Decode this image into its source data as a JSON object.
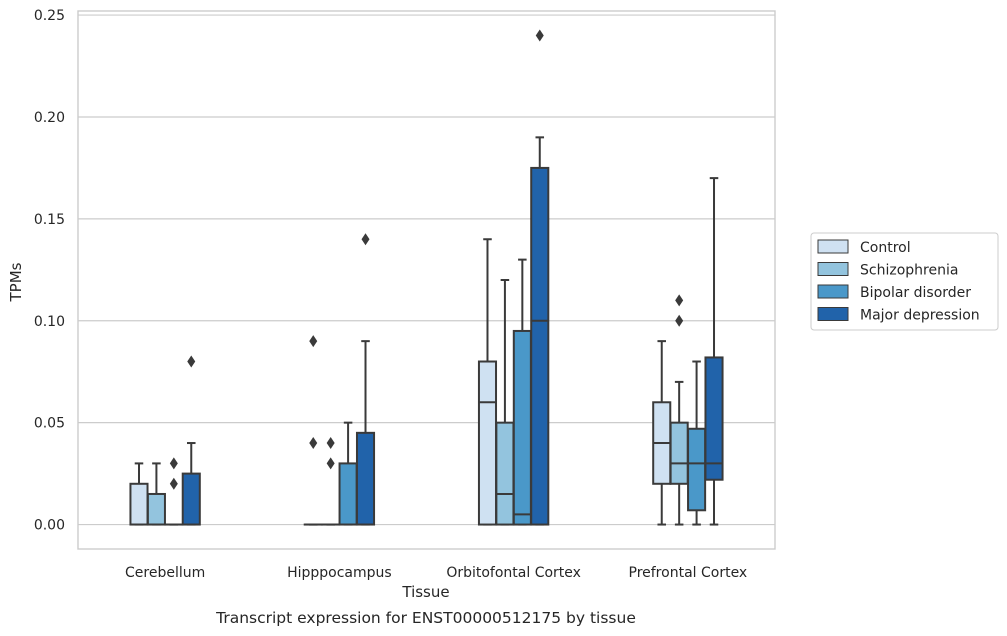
{
  "chart_data": {
    "type": "box",
    "title": "Transcript expression for ENST00000512175 by tissue",
    "xlabel": "Tissue",
    "ylabel": "TPMs",
    "ylim": [
      -0.012,
      0.252
    ],
    "yticks": [
      0.0,
      0.05,
      0.1,
      0.15,
      0.2,
      0.25
    ],
    "ytick_labels": [
      "0.00",
      "0.05",
      "0.10",
      "0.15",
      "0.20",
      "0.25"
    ],
    "grid": "horizontal",
    "legend_position": "right",
    "categories": [
      "Cerebellum",
      "Hipppocampus",
      "Orbitofontal Cortex",
      "Prefrontal Cortex"
    ],
    "series": [
      {
        "name": "Control",
        "color": "#cfe1f2",
        "boxes": [
          {
            "whislo": 0.0,
            "q1": 0.0,
            "med": 0.0,
            "q3": 0.02,
            "whishi": 0.03,
            "fliers": []
          },
          {
            "whislo": 0.0,
            "q1": 0.0,
            "med": 0.0,
            "q3": 0.0,
            "whishi": 0.0,
            "fliers": [
              0.04,
              0.09
            ]
          },
          {
            "whislo": 0.0,
            "q1": 0.0,
            "med": 0.06,
            "q3": 0.08,
            "whishi": 0.14,
            "fliers": []
          },
          {
            "whislo": 0.0,
            "q1": 0.02,
            "med": 0.04,
            "q3": 0.06,
            "whishi": 0.09,
            "fliers": []
          }
        ]
      },
      {
        "name": "Schizophrenia",
        "color": "#93c4de",
        "boxes": [
          {
            "whislo": 0.0,
            "q1": 0.0,
            "med": 0.0,
            "q3": 0.015,
            "whishi": 0.03,
            "fliers": []
          },
          {
            "whislo": 0.0,
            "q1": 0.0,
            "med": 0.0,
            "q3": 0.0,
            "whishi": 0.0,
            "fliers": [
              0.03,
              0.04
            ]
          },
          {
            "whislo": 0.0,
            "q1": 0.0,
            "med": 0.015,
            "q3": 0.05,
            "whishi": 0.12,
            "fliers": []
          },
          {
            "whislo": 0.0,
            "q1": 0.02,
            "med": 0.03,
            "q3": 0.05,
            "whishi": 0.07,
            "fliers": [
              0.1,
              0.11
            ]
          }
        ]
      },
      {
        "name": "Bipolar disorder",
        "color": "#4a98c9",
        "boxes": [
          {
            "whislo": 0.0,
            "q1": 0.0,
            "med": 0.0,
            "q3": 0.0,
            "whishi": 0.0,
            "fliers": [
              0.02,
              0.03
            ]
          },
          {
            "whislo": 0.0,
            "q1": 0.0,
            "med": 0.0,
            "q3": 0.03,
            "whishi": 0.05,
            "fliers": []
          },
          {
            "whislo": 0.0,
            "q1": 0.0,
            "med": 0.005,
            "q3": 0.095,
            "whishi": 0.13,
            "fliers": []
          },
          {
            "whislo": 0.0,
            "q1": 0.007,
            "med": 0.03,
            "q3": 0.047,
            "whishi": 0.08,
            "fliers": []
          }
        ]
      },
      {
        "name": "Major depression",
        "color": "#2163aa",
        "boxes": [
          {
            "whislo": 0.0,
            "q1": 0.0,
            "med": 0.0,
            "q3": 0.025,
            "whishi": 0.04,
            "fliers": [
              0.08
            ]
          },
          {
            "whislo": 0.0,
            "q1": 0.0,
            "med": 0.0,
            "q3": 0.045,
            "whishi": 0.09,
            "fliers": [
              0.14
            ]
          },
          {
            "whislo": 0.0,
            "q1": 0.0,
            "med": 0.1,
            "q3": 0.175,
            "whishi": 0.19,
            "fliers": [
              0.24
            ]
          },
          {
            "whislo": 0.0,
            "q1": 0.022,
            "med": 0.03,
            "q3": 0.082,
            "whishi": 0.17,
            "fliers": []
          }
        ]
      }
    ]
  },
  "colors": {
    "grid": "#cccccc",
    "spine": "#cccccc",
    "box_edge": "#3a3a3a",
    "text": "#262626"
  }
}
